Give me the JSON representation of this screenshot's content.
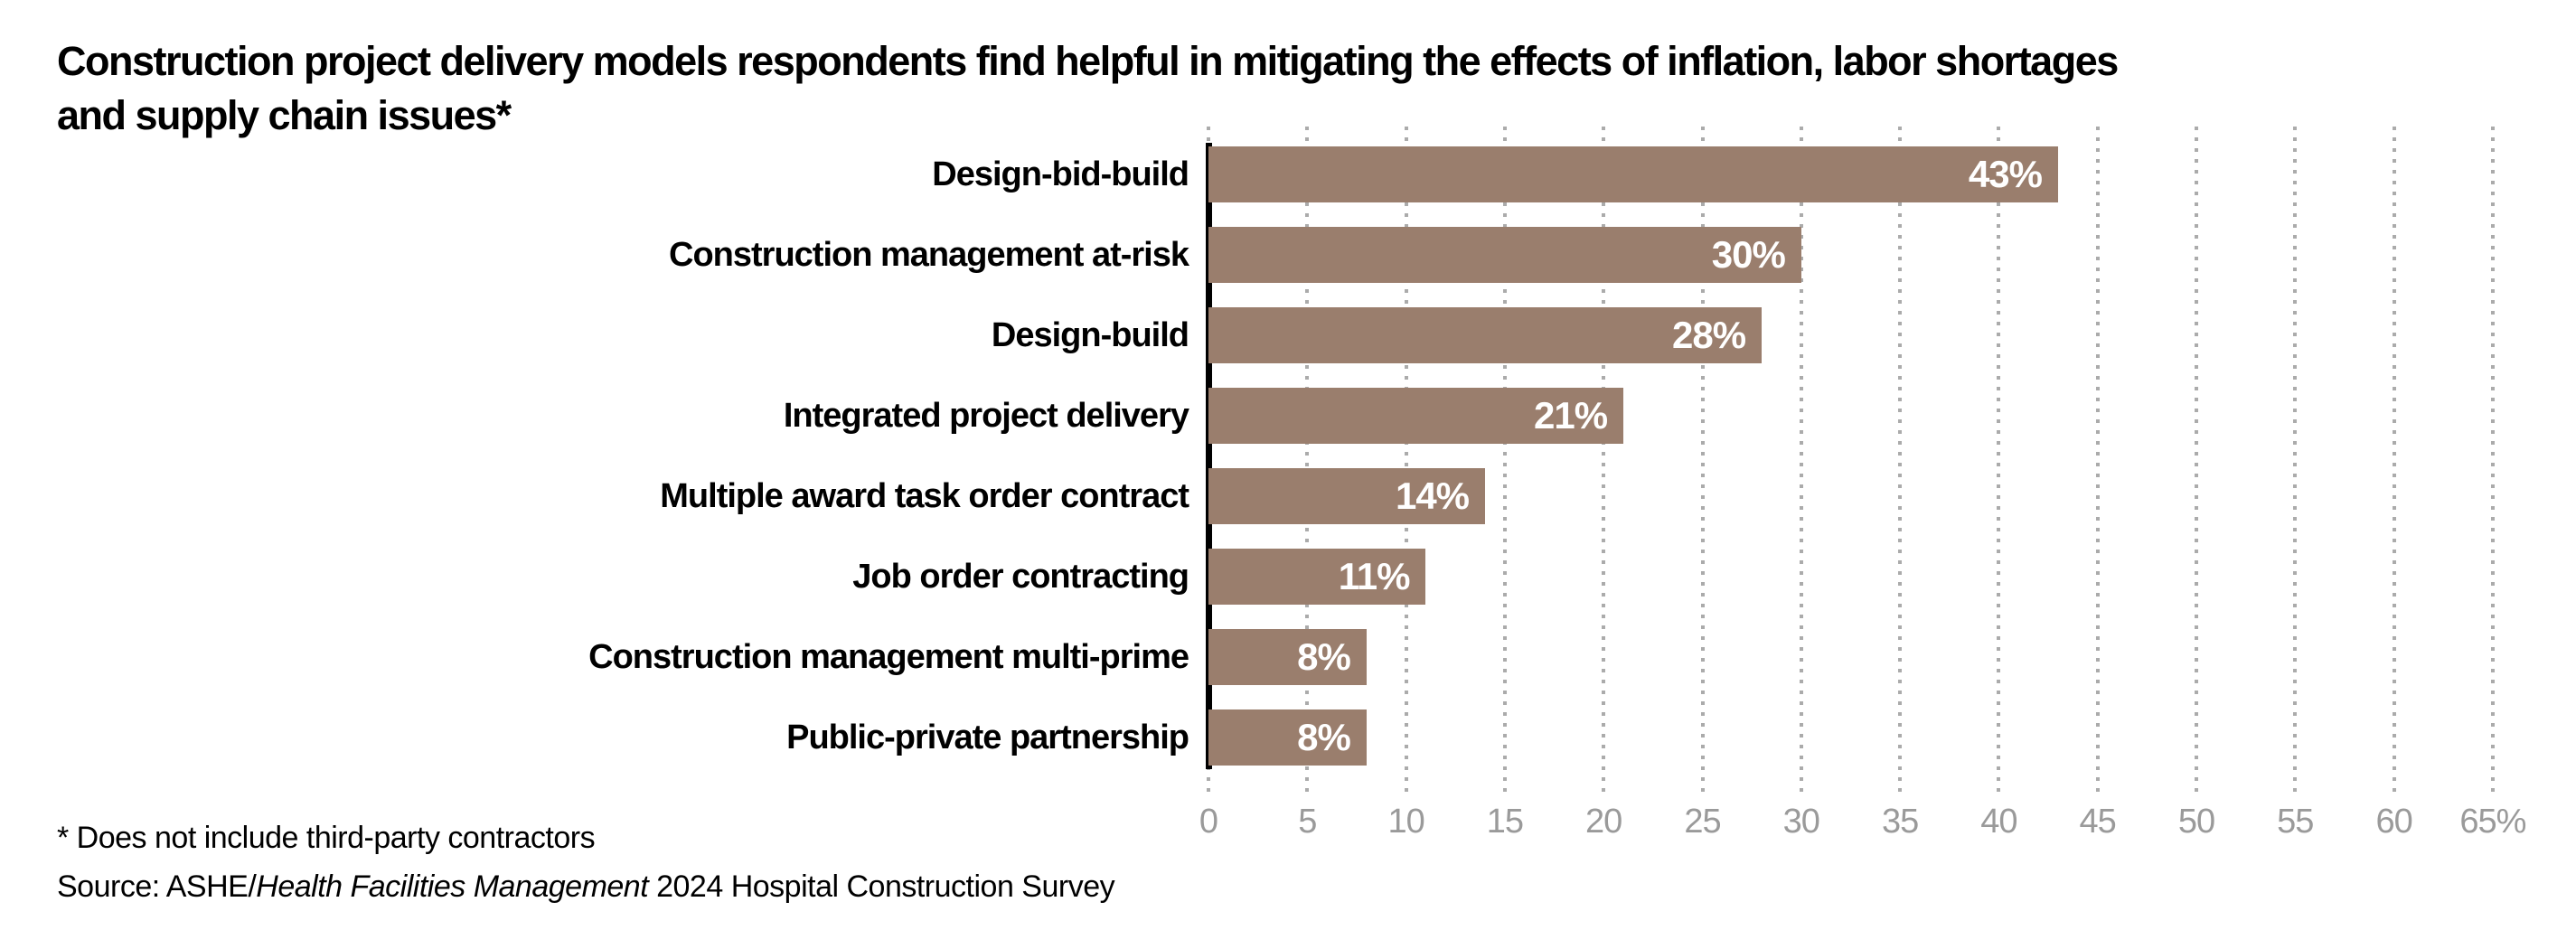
{
  "page": {
    "title_lines": [
      "Construction project delivery models respondents find helpful in mitigating the effects of inflation, labor shortages",
      "and supply chain issues*"
    ],
    "footnote": "* Does not include third-party contractors",
    "source_prefix": "Source: ASHE/",
    "source_italic": "Health Facilities Management",
    "source_suffix": " 2024 Hospital Construction Survey"
  },
  "chart_data": {
    "type": "bar",
    "orientation": "horizontal",
    "title": "Construction project delivery models respondents find helpful in mitigating the effects of inflation, labor shortages and supply chain issues*",
    "categories": [
      "Design-bid-build",
      "Construction management at-risk",
      "Design-build",
      "Integrated project delivery",
      "Multiple award task order contract",
      "Job order contracting",
      "Construction management multi-prime",
      "Public-private partnership"
    ],
    "values": [
      43,
      30,
      28,
      21,
      14,
      11,
      8,
      8
    ],
    "value_labels": [
      "43%",
      "30%",
      "28%",
      "21%",
      "14%",
      "11%",
      "8%",
      "8%"
    ],
    "xlabel": "",
    "ylabel": "",
    "xlim": [
      0,
      65
    ],
    "x_ticks": [
      0,
      5,
      10,
      15,
      20,
      25,
      30,
      35,
      40,
      45,
      50,
      55,
      60,
      65
    ],
    "x_tick_labels": [
      "0",
      "5",
      "10",
      "15",
      "20",
      "25",
      "30",
      "35",
      "40",
      "45",
      "50",
      "55",
      "60",
      "65%"
    ],
    "grid": "dotted-vertical-gridlines",
    "legend": "none",
    "colors": {
      "bar": "#9a7e6d",
      "value_label": "#ffffff",
      "tick_label": "#9a9a9a",
      "gridline": "#ababab",
      "axis_line": "#000000",
      "text": "#000000"
    }
  }
}
